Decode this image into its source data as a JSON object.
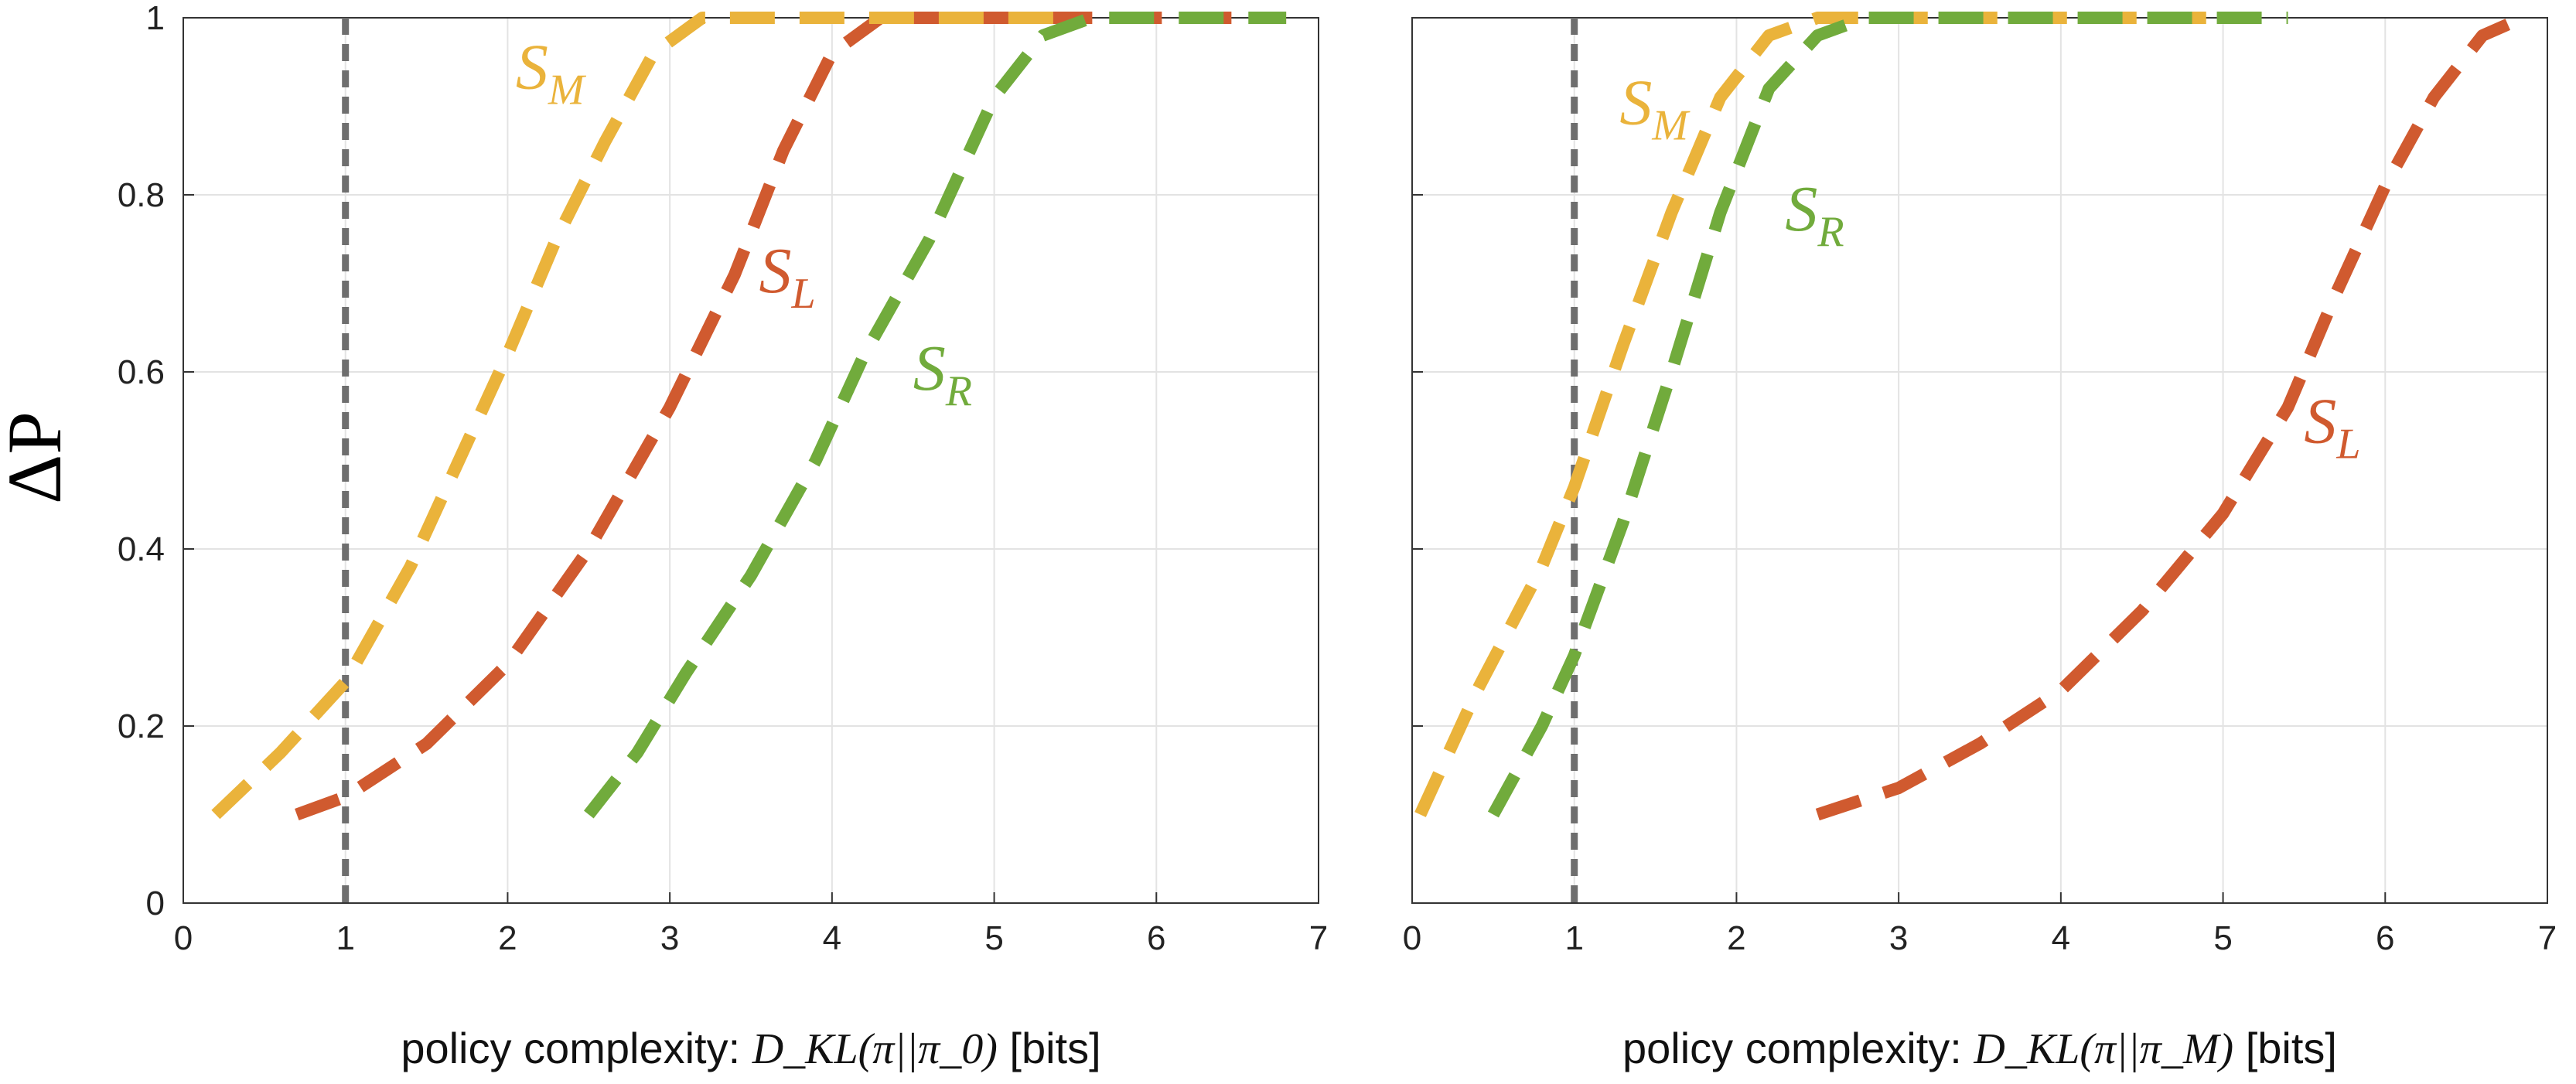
{
  "chart_data": [
    {
      "type": "line",
      "panel": "left",
      "ylabel": "ΔP",
      "xlabel": {
        "prefix": "policy complexity: ",
        "math": "D_KL(π||π_0)",
        "suffix": " [bits]"
      },
      "xlim": [
        0,
        7
      ],
      "ylim": [
        0,
        1
      ],
      "xticks": [
        "0",
        "1",
        "2",
        "3",
        "4",
        "5",
        "6",
        "7"
      ],
      "yticks": [
        "0",
        "0.2",
        "0.4",
        "0.6",
        "0.8",
        "1"
      ],
      "grid": true,
      "reference_line_x": 1,
      "series": [
        {
          "name": "S_L",
          "base": "S",
          "sub": "L",
          "color": "#d05a2f",
          "x": [
            0.7,
            1.0,
            1.5,
            2.0,
            2.5,
            3.0,
            3.4,
            3.7,
            4.0,
            4.3,
            5.0,
            6.0,
            6.8
          ],
          "y": [
            0.1,
            0.12,
            0.18,
            0.27,
            0.4,
            0.56,
            0.71,
            0.85,
            0.96,
            1.0,
            1.0,
            1.0,
            1.0
          ],
          "label_at": [
            3.55,
            0.69
          ]
        },
        {
          "name": "S_M",
          "base": "S",
          "sub": "M",
          "color": "#eab33b",
          "x": [
            0.2,
            0.6,
            1.0,
            1.4,
            1.7,
            2.0,
            2.3,
            2.6,
            2.9,
            3.2,
            3.5,
            4.5,
            5.5
          ],
          "y": [
            0.1,
            0.17,
            0.25,
            0.38,
            0.5,
            0.62,
            0.75,
            0.86,
            0.96,
            1.0,
            1.0,
            1.0,
            1.0
          ],
          "label_at": [
            2.05,
            0.92
          ]
        },
        {
          "name": "S_R",
          "base": "S",
          "sub": "R",
          "color": "#71ab3c",
          "x": [
            2.5,
            2.8,
            3.1,
            3.5,
            3.9,
            4.2,
            4.6,
            5.0,
            5.3,
            5.6,
            6.2,
            6.8
          ],
          "y": [
            0.1,
            0.17,
            0.26,
            0.37,
            0.5,
            0.62,
            0.75,
            0.91,
            0.98,
            1.0,
            1.0,
            1.0
          ],
          "label_at": [
            4.5,
            0.58
          ]
        }
      ]
    },
    {
      "type": "line",
      "panel": "right",
      "xlabel": {
        "prefix": "policy complexity: ",
        "math": "D_KL(π||π_M)",
        "suffix": " [bits]"
      },
      "xlim": [
        0,
        7
      ],
      "ylim": [
        0,
        1
      ],
      "xticks": [
        "0",
        "1",
        "2",
        "3",
        "4",
        "5",
        "6",
        "7"
      ],
      "yticks": [],
      "grid": true,
      "reference_line_x": 1,
      "series": [
        {
          "name": "S_M",
          "base": "S",
          "sub": "M",
          "color": "#eab33b",
          "x": [
            0.05,
            0.4,
            0.8,
            1.0,
            1.3,
            1.6,
            1.9,
            2.2,
            2.5,
            3.0,
            4.0,
            5.0
          ],
          "y": [
            0.1,
            0.24,
            0.38,
            0.47,
            0.63,
            0.78,
            0.91,
            0.98,
            1.0,
            1.0,
            1.0,
            1.0
          ],
          "label_at": [
            1.28,
            0.88
          ]
        },
        {
          "name": "S_R",
          "base": "S",
          "sub": "R",
          "color": "#71ab3c",
          "x": [
            0.5,
            0.8,
            1.0,
            1.3,
            1.6,
            1.9,
            2.2,
            2.5,
            2.8,
            3.3,
            4.3,
            5.4
          ],
          "y": [
            0.1,
            0.2,
            0.28,
            0.43,
            0.6,
            0.78,
            0.92,
            0.98,
            1.0,
            1.0,
            1.0,
            1.0
          ],
          "label_at": [
            2.3,
            0.76
          ]
        },
        {
          "name": "S_L",
          "base": "S",
          "sub": "L",
          "color": "#d05a2f",
          "x": [
            2.5,
            3.0,
            3.5,
            4.0,
            4.5,
            5.0,
            5.4,
            5.7,
            6.0,
            6.3,
            6.6,
            6.85
          ],
          "y": [
            0.1,
            0.13,
            0.18,
            0.24,
            0.33,
            0.44,
            0.56,
            0.69,
            0.81,
            0.91,
            0.98,
            1.0
          ],
          "label_at": [
            5.5,
            0.52
          ]
        }
      ]
    }
  ]
}
